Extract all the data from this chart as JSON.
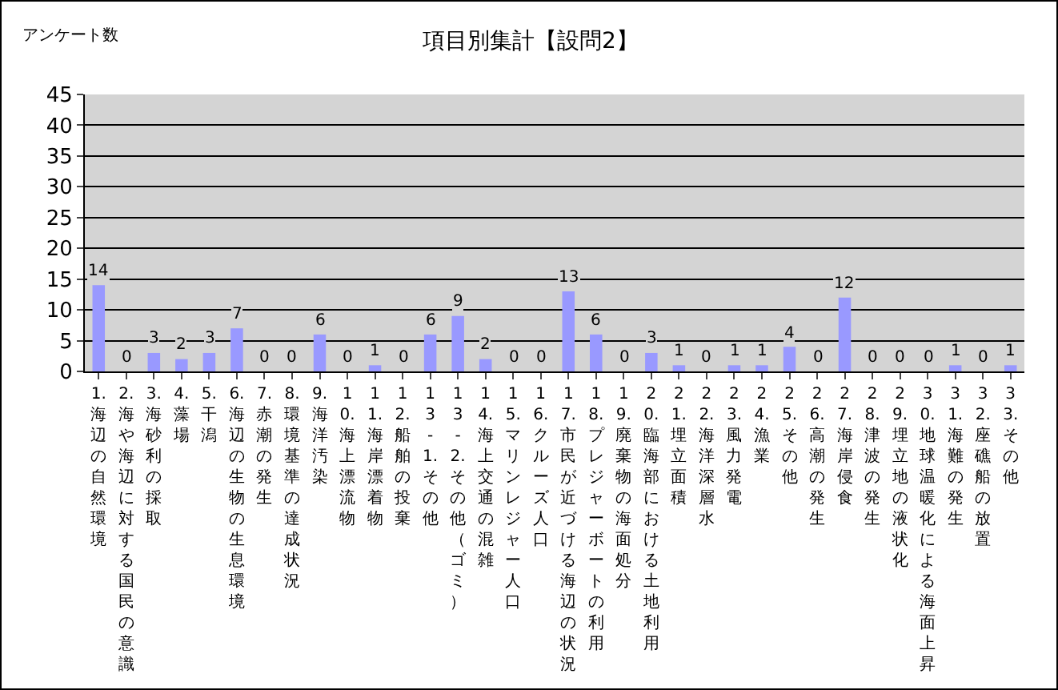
{
  "chart_data": {
    "type": "bar",
    "title": "項目別集計【設問2】",
    "ylabel": "アンケート数",
    "categories": [
      "1.海辺の自然環境",
      "2.海や海辺に対する国民の意識",
      "3.海砂利の採取",
      "4.藻場",
      "5.干潟",
      "6.海辺の生物の生息環境",
      "7.赤潮の発生",
      "8.環境基準の達成状況",
      "9.海洋汚染",
      "10.海上漂流物",
      "11.海岸漂着物",
      "12.船舶の投棄",
      "13-1.その他",
      "13-2.その他（ゴミ）",
      "14.海上交通の混雑",
      "15.マリンレジャー人口",
      "16.クルーズ人口",
      "17.市民が近づける海辺の状況",
      "18.プレジャーボートの利用",
      "19.廃棄物の海面処分",
      "20.臨海部における土地利用",
      "21.埋立面積",
      "22.海洋深層水",
      "23.風力発電",
      "24.漁業",
      "25.その他",
      "26.高潮の発生",
      "27.海岸侵食",
      "28.津波の発生",
      "29.埋立地の液状化",
      "30.地球温暖化による海面上昇",
      "31.海難の発生",
      "32.座礁船の放置",
      "33.その他"
    ],
    "values": [
      14,
      0,
      3,
      2,
      3,
      7,
      0,
      0,
      6,
      0,
      1,
      0,
      6,
      9,
      2,
      0,
      0,
      13,
      6,
      0,
      3,
      1,
      0,
      1,
      1,
      4,
      0,
      12,
      0,
      0,
      0,
      1,
      0,
      1
    ],
    "color": "#9999ff",
    "ylim": [
      0,
      45
    ],
    "yticks": [
      0,
      5,
      10,
      15,
      20,
      25,
      30,
      35,
      40,
      45
    ],
    "grid": "y",
    "data_labels": true
  }
}
